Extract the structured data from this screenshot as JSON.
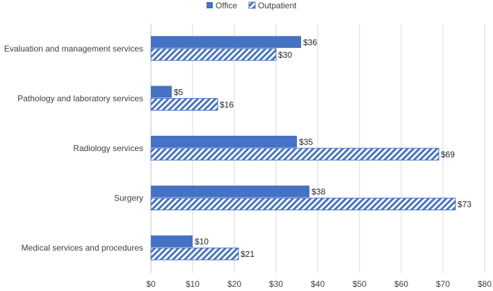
{
  "chart_data": {
    "type": "bar",
    "orientation": "horizontal",
    "title": "",
    "xlabel": "",
    "ylabel": "",
    "categories": [
      "Evaluation and management services",
      "Pathology and laboratory services",
      "Radiology services",
      "Surgery",
      "Medical services and procedures"
    ],
    "series": [
      {
        "name": "Office",
        "values": [
          36,
          5,
          35,
          38,
          10
        ],
        "fill": "solid"
      },
      {
        "name": "Outpatient",
        "values": [
          30,
          16,
          69,
          73,
          21
        ],
        "fill": "hatched"
      }
    ],
    "value_prefix": "$",
    "xlim": [
      0,
      80
    ],
    "xticks": [
      0,
      10,
      20,
      30,
      40,
      50,
      60,
      70,
      80
    ],
    "grid": true,
    "legend_position": "top-center"
  },
  "colors": {
    "bar": "#4472C4",
    "grid": "#d9d9d9",
    "axis": "#bfbfbf"
  }
}
